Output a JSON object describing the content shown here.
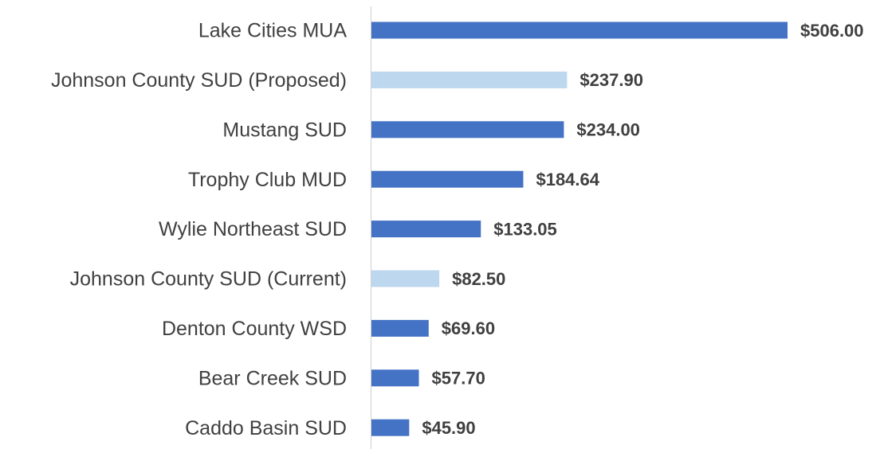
{
  "chart_data": {
    "type": "hbar",
    "categories": [
      "Lake Cities MUA",
      "Johnson County SUD (Proposed)",
      "Mustang SUD",
      "Trophy Club MUD",
      "Wylie Northeast SUD",
      "Johnson County SUD (Current)",
      "Denton County WSD",
      "Bear Creek SUD",
      "Caddo Basin SUD"
    ],
    "values": [
      506,
      237.9,
      234,
      184.64,
      133.05,
      82.5,
      69.6,
      57.7,
      45.9
    ],
    "value_labels": [
      "$506.00",
      "$237.90",
      "$234.00",
      "$184.64",
      "$133.05",
      "$82.50",
      "$69.60",
      "$57.70",
      "$45.90"
    ],
    "colors": [
      "#4472c4",
      "#bdd7ee",
      "#4472c4",
      "#4472c4",
      "#4472c4",
      "#bdd7ee",
      "#4472c4",
      "#4472c4",
      "#4472c4"
    ]
  }
}
